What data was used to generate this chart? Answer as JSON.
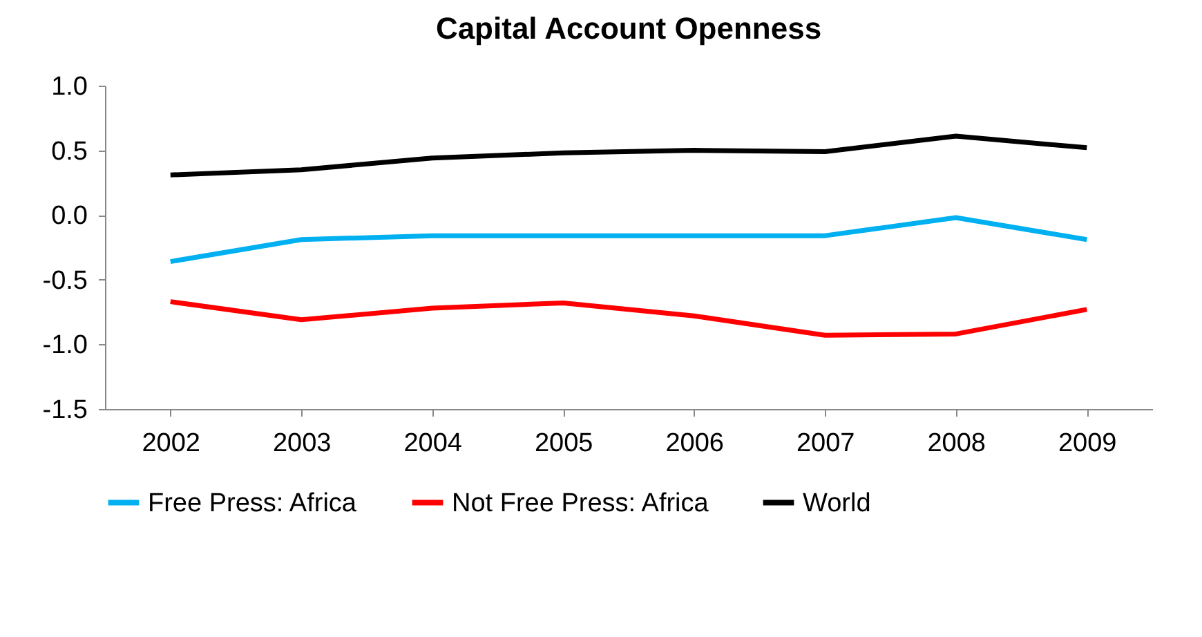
{
  "chart_data": {
    "type": "line",
    "title": "Capital Account Openness",
    "categories": [
      "2002",
      "2003",
      "2004",
      "2005",
      "2006",
      "2007",
      "2008",
      "2009"
    ],
    "series": [
      {
        "name": "Free Press: Africa",
        "color": "#00b0f0",
        "values": [
          -0.36,
          -0.19,
          -0.16,
          -0.16,
          -0.16,
          -0.16,
          -0.02,
          -0.19
        ]
      },
      {
        "name": "Not Free Press: Africa",
        "color": "#ff0000",
        "values": [
          -0.67,
          -0.81,
          -0.72,
          -0.68,
          -0.78,
          -0.93,
          -0.92,
          -0.73
        ]
      },
      {
        "name": "World",
        "color": "#000000",
        "values": [
          0.31,
          0.35,
          0.44,
          0.48,
          0.5,
          0.49,
          0.61,
          0.52
        ]
      }
    ],
    "ylim": [
      -1.5,
      1.0
    ],
    "yticks": [
      {
        "value": -1.5,
        "label": "-1.5"
      },
      {
        "value": -1.0,
        "label": "-1.0"
      },
      {
        "value": -0.5,
        "label": "-0.5"
      },
      {
        "value": 0,
        "label": "0.0"
      },
      {
        "value": 0.5,
        "label": "0.5"
      },
      {
        "value": 1.0,
        "label": "1.0"
      }
    ],
    "grid": false,
    "legend": "bottom",
    "marker": "none",
    "line_style": "solid"
  }
}
